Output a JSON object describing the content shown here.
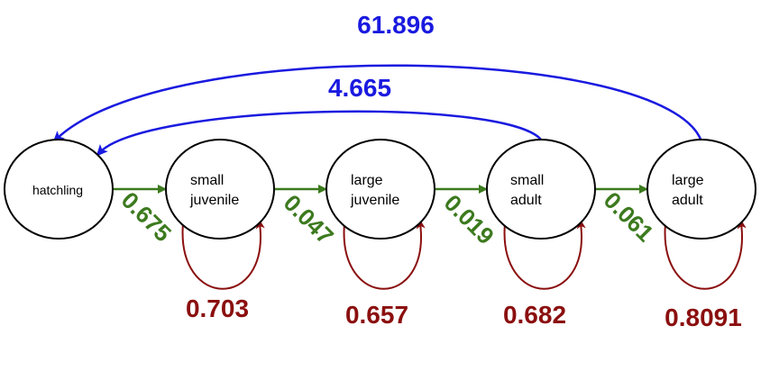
{
  "colors": {
    "transition": "#3c7a1e",
    "survival": "#8b0f0f",
    "fecundity": "#1a1ae0",
    "node_stroke": "#000000"
  },
  "nodes": [
    {
      "id": "hatchling",
      "lines": [
        "hatchling"
      ]
    },
    {
      "id": "small-juvenile",
      "lines": [
        "small",
        "juvenile"
      ]
    },
    {
      "id": "large-juvenile",
      "lines": [
        "large",
        "juvenile"
      ]
    },
    {
      "id": "small-adult",
      "lines": [
        "small",
        "adult"
      ]
    },
    {
      "id": "large-adult",
      "lines": [
        "large",
        "adult"
      ]
    }
  ],
  "transitions": [
    {
      "from": "hatchling",
      "to": "small-juvenile",
      "label": "0.675"
    },
    {
      "from": "small-juvenile",
      "to": "large-juvenile",
      "label": "0.047"
    },
    {
      "from": "large-juvenile",
      "to": "small-adult",
      "label": "0.019"
    },
    {
      "from": "small-adult",
      "to": "large-adult",
      "label": "0.061"
    }
  ],
  "self_loops": [
    {
      "node": "small-juvenile",
      "label": "0.703"
    },
    {
      "node": "large-juvenile",
      "label": "0.657"
    },
    {
      "node": "small-adult",
      "label": "0.682"
    },
    {
      "node": "large-adult",
      "label": "0.8091"
    }
  ],
  "fecundity": [
    {
      "from": "small-adult",
      "to": "hatchling",
      "label": "4.665"
    },
    {
      "from": "large-adult",
      "to": "hatchling",
      "label": "61.896"
    }
  ]
}
